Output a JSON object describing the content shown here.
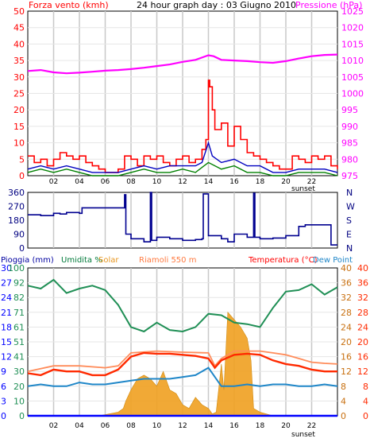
{
  "colors": {
    "wind": "#ff0000",
    "gust_bars": "#ff0000",
    "wind_avg": "#0000c0",
    "wind_min": "#008000",
    "pressure": "#ff00ff",
    "direction": "#000090",
    "rain": "#0000ff",
    "humidity": "#1f8f55",
    "solar": "#f0a020",
    "temperature": "#ff2a00",
    "dew_point": "#1e86c8",
    "ground": "#ff8c5a",
    "grid": "#c8c8c8",
    "frame": "#000000"
  },
  "top_panel": {
    "left_title": "Forza vento (kmh)",
    "center_title": "24 hour graph day : 03 Giugno 2010",
    "right_title": "Pressione (hPa)",
    "sunset_label": "sunset"
  },
  "dir_panel": {
    "sunset_label": "sunset"
  },
  "bottom_panel": {
    "legend_rain": "Pioggia (mm)",
    "legend_humidity": "Umidita %",
    "legend_solar": "Solar",
    "legend_ground": "Riamoli 550 m",
    "legend_temp": "Temperatura (°C)",
    "legend_dew": "Dew Point",
    "sunset_label": "sunset"
  },
  "chart_data": [
    {
      "type": "line",
      "name_ref": "wind_pressure",
      "title": "24 hour graph day : 03 Giugno 2010",
      "ylabel_left": "Forza vento (kmh)",
      "ylabel_right": "Pressione (hPa)",
      "xlim": [
        0,
        24
      ],
      "x_ticks": [
        "02",
        "04",
        "06",
        "08",
        "10",
        "12",
        "14",
        "16",
        "18",
        "20",
        "22"
      ],
      "ylim_left": [
        0,
        50
      ],
      "yticks_left": [
        "0",
        "5",
        "10",
        "15",
        "20",
        "25",
        "30",
        "35",
        "40",
        "45",
        "50"
      ],
      "ylim_right": [
        975,
        1025
      ],
      "yticks_right": [
        "975",
        "980",
        "985",
        "990",
        "995",
        "1000",
        "1005",
        "1010",
        "1015",
        "1020",
        "1025"
      ],
      "grid": true,
      "series": {
        "pressure": {
          "x": [
            0,
            1,
            2,
            3,
            4,
            5,
            6,
            7,
            8,
            9,
            10,
            11,
            12,
            13,
            13.5,
            14,
            14.4,
            15,
            16,
            17,
            18,
            19,
            20,
            21,
            22,
            23,
            24
          ],
          "y": [
            1006.8,
            1007.1,
            1006.4,
            1006.1,
            1006.3,
            1006.6,
            1006.9,
            1007.1,
            1007.4,
            1007.8,
            1008.3,
            1008.8,
            1009.6,
            1010.2,
            1010.9,
            1011.6,
            1011.3,
            1010.2,
            1010.0,
            1009.8,
            1009.5,
            1009.3,
            1009.8,
            1010.6,
            1011.3,
            1011.7,
            1011.8
          ]
        },
        "gust": {
          "x": [
            0,
            0.5,
            1,
            1.5,
            2,
            2.5,
            3,
            3.5,
            4,
            4.5,
            5,
            5.5,
            6,
            6.5,
            7,
            7.5,
            8,
            8.5,
            9,
            9.5,
            10,
            10.5,
            11,
            11.5,
            12,
            12.5,
            13,
            13.5,
            13.8,
            14,
            14.1,
            14.3,
            14.5,
            15,
            15.5,
            16,
            16.5,
            17,
            17.5,
            18,
            18.5,
            19,
            19.5,
            20,
            20.5,
            21,
            21.5,
            22,
            22.5,
            23,
            23.5,
            24
          ],
          "y": [
            6,
            4,
            5,
            3,
            5,
            7,
            6,
            5,
            6,
            4,
            3,
            2,
            1,
            1,
            2,
            6,
            5,
            3,
            6,
            5,
            6,
            4,
            3,
            5,
            6,
            4,
            5,
            8,
            11,
            29,
            27,
            20,
            14,
            16,
            9,
            15,
            11,
            7,
            6,
            5,
            4,
            3,
            2,
            2,
            6,
            5,
            4,
            6,
            5,
            6,
            3,
            2
          ]
        },
        "wind_avg": {
          "x": [
            0,
            1,
            2,
            3,
            4,
            5,
            6,
            7,
            8,
            9,
            10,
            11,
            12,
            13,
            13.5,
            14,
            14.3,
            15,
            16,
            17,
            18,
            19,
            20,
            21,
            22,
            23,
            24
          ],
          "y": [
            2,
            3,
            2,
            3,
            2,
            1,
            1,
            1,
            2,
            3,
            2,
            3,
            3,
            3,
            4,
            10,
            6,
            4,
            5,
            3,
            3,
            1,
            1,
            2,
            2,
            2,
            1
          ]
        },
        "wind_min": {
          "x": [
            0,
            1,
            2,
            3,
            4,
            5,
            6,
            7,
            8,
            9,
            10,
            11,
            12,
            13,
            14,
            15,
            16,
            17,
            18,
            19,
            20,
            21,
            22,
            23,
            24
          ],
          "y": [
            1,
            2,
            1,
            2,
            1,
            0,
            0,
            0,
            1,
            2,
            1,
            1,
            2,
            1,
            4,
            2,
            3,
            1,
            1,
            0,
            0,
            1,
            1,
            1,
            0
          ]
        }
      }
    },
    {
      "type": "line",
      "name_ref": "wind_direction",
      "xlim": [
        0,
        24
      ],
      "ylim_left": [
        0,
        360
      ],
      "yticks_left": [
        "0",
        "90",
        "180",
        "270",
        "360"
      ],
      "yticks_right": [
        "N",
        "E",
        "S",
        "W",
        "N"
      ],
      "x": [
        0,
        1,
        2,
        2.5,
        3,
        4,
        4.2,
        6,
        7.4,
        7.5,
        7.6,
        8,
        9,
        9.5,
        9.6,
        10,
        11,
        12,
        13,
        13.5,
        13.6,
        14,
        15,
        15.5,
        16,
        17,
        17.5,
        17.6,
        18,
        19,
        20,
        21,
        21.5,
        22,
        23,
        23.5,
        24
      ],
      "y": [
        215,
        210,
        225,
        220,
        230,
        225,
        260,
        260,
        260,
        345,
        90,
        60,
        40,
        360,
        50,
        70,
        60,
        50,
        55,
        60,
        350,
        80,
        60,
        40,
        90,
        70,
        355,
        70,
        60,
        65,
        80,
        140,
        150,
        150,
        150,
        20,
        20
      ]
    },
    {
      "type": "area",
      "name_ref": "climate",
      "xlim": [
        0,
        24
      ],
      "x_ticks": [
        "02",
        "04",
        "06",
        "08",
        "10",
        "12",
        "14",
        "16",
        "18",
        "20",
        "22"
      ],
      "ylim_temp": [
        0,
        40
      ],
      "yticks_temp": [
        "0",
        "4",
        "8",
        "12",
        "16",
        "20",
        "24",
        "28",
        "32",
        "36",
        "40"
      ],
      "ylim_humidity": [
        0,
        100
      ],
      "yticks_humidity": [
        "0",
        "10",
        "20",
        "30",
        "41",
        "51",
        "61",
        "71",
        "82",
        "92",
        "100"
      ],
      "ylim_rain": [
        0,
        30
      ],
      "yticks_rain": [
        "0",
        "3",
        "6",
        "9",
        "12",
        "15",
        "18",
        "21",
        "24",
        "27",
        "30"
      ],
      "ylim_dew": [
        0,
        40
      ],
      "yticks_dew": [
        "0",
        "4",
        "8",
        "12",
        "16",
        "20",
        "24",
        "28",
        "32",
        "36",
        "40"
      ],
      "series": {
        "humidity": {
          "x": [
            0,
            1,
            2,
            3,
            4,
            5,
            6,
            7,
            8,
            9,
            10,
            11,
            12,
            13,
            14,
            15,
            16,
            17,
            18,
            19,
            20,
            21,
            22,
            23,
            24
          ],
          "y": [
            88,
            86,
            92,
            83,
            86,
            88,
            85,
            75,
            60,
            57,
            63,
            58,
            57,
            60,
            69,
            68,
            63,
            62,
            60,
            73,
            84,
            85,
            89,
            82,
            87
          ]
        },
        "temperature": {
          "x": [
            0,
            1,
            2,
            3,
            4,
            5,
            6,
            7,
            8,
            9,
            10,
            11,
            12,
            13,
            14,
            14.5,
            15,
            16,
            17,
            18,
            19,
            20,
            21,
            22,
            23,
            24
          ],
          "y": [
            11.5,
            11,
            12.5,
            12,
            12,
            11,
            11,
            12.5,
            16,
            17,
            16.8,
            16.8,
            16.5,
            16.2,
            15.5,
            13,
            15,
            16.5,
            16.8,
            16.5,
            15,
            14,
            13.5,
            12.5,
            12,
            12
          ]
        },
        "ground": {
          "x": [
            0,
            2,
            4,
            6,
            7,
            8,
            10,
            12,
            14,
            14.5,
            15,
            16,
            17,
            18,
            19,
            20,
            21,
            22,
            23,
            24
          ],
          "y": [
            12,
            13.5,
            13.5,
            13,
            13.5,
            17,
            17.5,
            17.2,
            17,
            13.5,
            15.5,
            17.5,
            17.5,
            17.5,
            17,
            16.5,
            15.5,
            14.5,
            14.2,
            14
          ]
        },
        "dew_point": {
          "x": [
            0,
            1,
            2,
            3,
            4,
            5,
            6,
            7,
            8,
            9,
            10,
            11,
            12,
            13,
            14,
            15,
            16,
            17,
            18,
            19,
            20,
            21,
            22,
            23,
            24
          ],
          "y": [
            8,
            8.5,
            8,
            8,
            9,
            8.5,
            8.5,
            9,
            9.5,
            10,
            10,
            10,
            10.5,
            11,
            13,
            8,
            8,
            8.5,
            8,
            8.5,
            8.5,
            8,
            8,
            8.5,
            8
          ]
        },
        "solar": {
          "x": [
            0,
            5.5,
            6,
            7,
            7.4,
            7.6,
            8,
            8.5,
            9,
            9.5,
            10,
            10.5,
            11,
            11.5,
            12,
            12.5,
            13,
            13.5,
            14,
            14.3,
            14.6,
            15,
            15.2,
            15.5,
            16,
            16.5,
            17,
            17.3,
            17.5,
            18,
            19,
            24
          ],
          "y": [
            0,
            0,
            0.3,
            1,
            2,
            4,
            7,
            10,
            11,
            10,
            8,
            12,
            7,
            6,
            3,
            2,
            5,
            3,
            2,
            0.5,
            1,
            14,
            7,
            28,
            26,
            24,
            21,
            15,
            2,
            1,
            0,
            0
          ]
        },
        "rain": {
          "x": [
            0,
            24
          ],
          "y": [
            0,
            0
          ]
        }
      }
    }
  ]
}
